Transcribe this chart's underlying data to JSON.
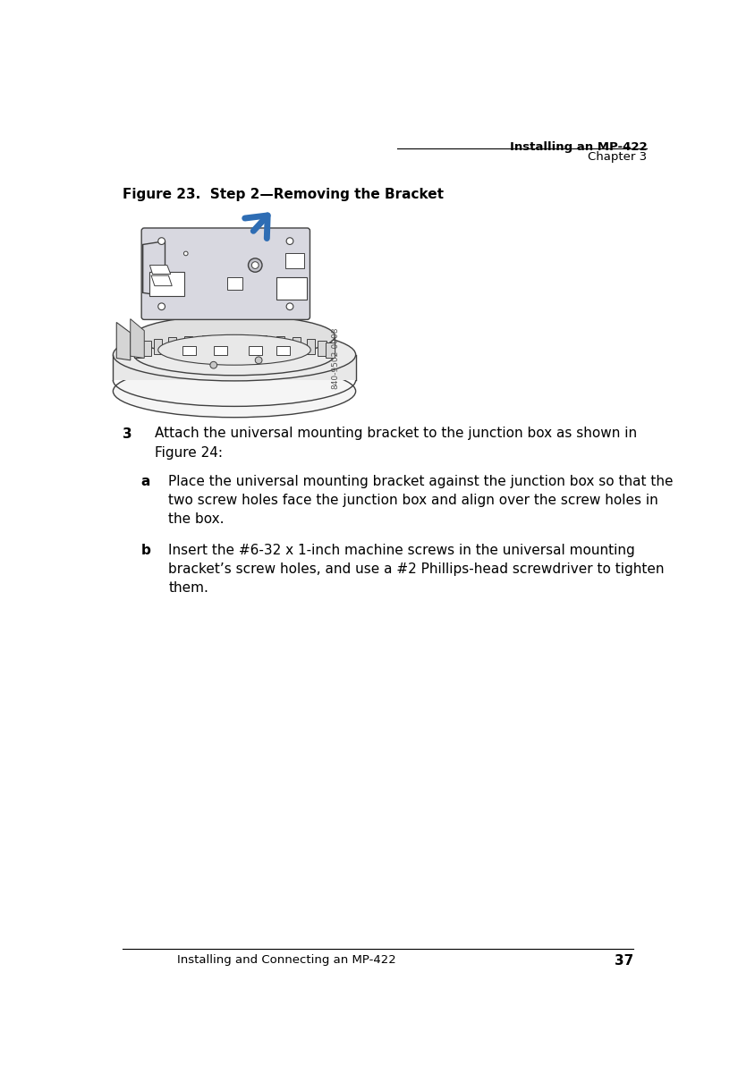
{
  "bg_color": "#ffffff",
  "header_title": "Installing an MP-422",
  "header_sub": "Chapter 3",
  "figure_caption": "Figure 23.  Step 2—Removing the Bracket",
  "footer_text": "Installing and Connecting an MP-422",
  "footer_page": "37",
  "watermark": "840-9502-0008",
  "step3_label": "3",
  "step3_text": "Attach the universal mounting bracket to the junction box as shown in\nFigure 24:",
  "step_a_label": "a",
  "step_a_text": "Place the universal mounting bracket against the junction box so that the\ntwo screw holes face the junction box and align over the screw holes in\nthe box.",
  "step_b_label": "b",
  "step_b_text": "Insert the #6-32 x 1-inch machine screws in the universal mounting\nbracket’s screw holes, and use a #2 Phillips-head screwdriver to tighten\nthem.",
  "arrow_color": "#2E6DB4",
  "line_color": "#333333",
  "text_color": "#000000",
  "header_line_color": "#000000",
  "illus_line_color": "#404040",
  "illus_fill_light": "#e8e8e8",
  "illus_fill_mid": "#d0d0d0",
  "illus_fill_bracket": "#d8d8e0"
}
